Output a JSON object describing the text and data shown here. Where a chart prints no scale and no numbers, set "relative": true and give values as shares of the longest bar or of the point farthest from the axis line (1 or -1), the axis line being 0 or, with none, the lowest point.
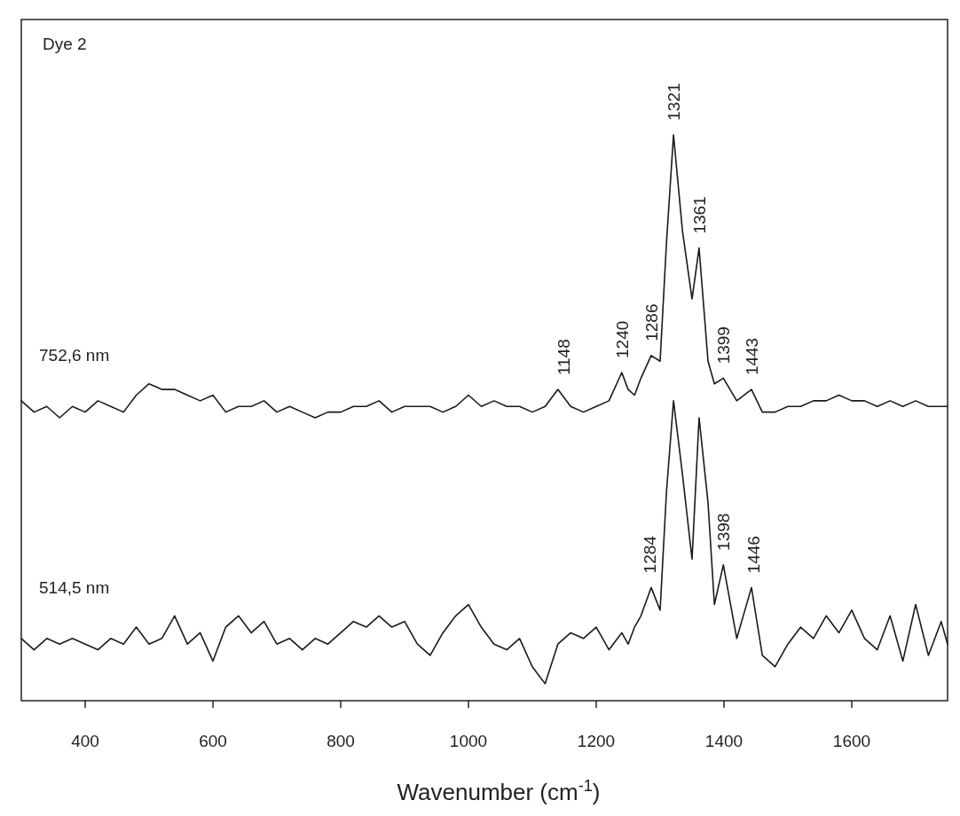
{
  "chart_data": {
    "type": "line",
    "relative": true,
    "xlabel": "Wavenumber (cm$^{-1}$)",
    "xlim": [
      300,
      1750
    ],
    "xticks": [
      400,
      600,
      800,
      1000,
      1200,
      1400,
      1600
    ],
    "legend": false,
    "grid": false,
    "marker": "none",
    "line_style": "solid",
    "x": [
      300,
      320,
      340,
      360,
      380,
      400,
      420,
      440,
      460,
      480,
      500,
      520,
      540,
      560,
      580,
      600,
      620,
      640,
      660,
      680,
      700,
      720,
      740,
      760,
      780,
      800,
      820,
      840,
      860,
      880,
      900,
      920,
      940,
      960,
      980,
      1000,
      1020,
      1040,
      1060,
      1080,
      1100,
      1120,
      1140,
      1160,
      1180,
      1200,
      1220,
      1240,
      1250,
      1260,
      1270,
      1286,
      1300,
      1310,
      1321,
      1335,
      1350,
      1361,
      1375,
      1385,
      1399,
      1420,
      1443,
      1460,
      1480,
      1500,
      1520,
      1540,
      1560,
      1580,
      1600,
      1620,
      1640,
      1660,
      1680,
      1700,
      1720,
      1740,
      1750
    ],
    "series": [
      {
        "name": "752,6 nm",
        "color": "#1a1a1a",
        "values": [
          0.53,
          0.51,
          0.52,
          0.5,
          0.52,
          0.51,
          0.53,
          0.52,
          0.51,
          0.54,
          0.56,
          0.55,
          0.55,
          0.54,
          0.53,
          0.54,
          0.51,
          0.52,
          0.52,
          0.53,
          0.51,
          0.52,
          0.51,
          0.5,
          0.51,
          0.51,
          0.52,
          0.52,
          0.53,
          0.51,
          0.52,
          0.52,
          0.52,
          0.51,
          0.52,
          0.54,
          0.52,
          0.53,
          0.52,
          0.52,
          0.51,
          0.52,
          0.55,
          0.52,
          0.51,
          0.52,
          0.53,
          0.58,
          0.55,
          0.54,
          0.57,
          0.61,
          0.6,
          0.81,
          1.0,
          0.83,
          0.71,
          0.8,
          0.6,
          0.56,
          0.57,
          0.53,
          0.55,
          0.51,
          0.51,
          0.52,
          0.52,
          0.53,
          0.53,
          0.54,
          0.53,
          0.53,
          0.52,
          0.53,
          0.52,
          0.53,
          0.52,
          0.52,
          0.52
        ]
      },
      {
        "name": "514,5 nm",
        "color": "#1a1a1a",
        "values": [
          0.11,
          0.09,
          0.11,
          0.1,
          0.11,
          0.1,
          0.09,
          0.11,
          0.1,
          0.13,
          0.1,
          0.11,
          0.15,
          0.1,
          0.12,
          0.07,
          0.13,
          0.15,
          0.12,
          0.14,
          0.1,
          0.11,
          0.09,
          0.11,
          0.1,
          0.12,
          0.14,
          0.13,
          0.15,
          0.13,
          0.14,
          0.1,
          0.08,
          0.12,
          0.15,
          0.17,
          0.13,
          0.1,
          0.09,
          0.11,
          0.06,
          0.03,
          0.1,
          0.12,
          0.11,
          0.13,
          0.09,
          0.12,
          0.1,
          0.13,
          0.15,
          0.2,
          0.16,
          0.37,
          0.53,
          0.4,
          0.25,
          0.5,
          0.35,
          0.17,
          0.24,
          0.11,
          0.2,
          0.08,
          0.06,
          0.1,
          0.13,
          0.11,
          0.15,
          0.12,
          0.16,
          0.11,
          0.09,
          0.15,
          0.07,
          0.17,
          0.08,
          0.14,
          0.1
        ]
      }
    ],
    "annotations": [
      "Dye 2",
      {
        "text": "1148",
        "x": 1148,
        "y": 0.55
      },
      {
        "text": "1240",
        "x": 1240,
        "y": 0.58
      },
      {
        "text": "1286",
        "x": 1286,
        "y": 0.61
      },
      {
        "text": "1321",
        "x": 1321,
        "y": 1.0
      },
      {
        "text": "1361",
        "x": 1361,
        "y": 0.8
      },
      {
        "text": "1399",
        "x": 1399,
        "y": 0.57
      },
      {
        "text": "1443",
        "x": 1443,
        "y": 0.55
      },
      {
        "text": "1284",
        "x": 1284,
        "y": 0.2
      },
      {
        "text": "1398",
        "x": 1398,
        "y": 0.24
      },
      {
        "text": "1446",
        "x": 1446,
        "y": 0.2
      }
    ]
  }
}
